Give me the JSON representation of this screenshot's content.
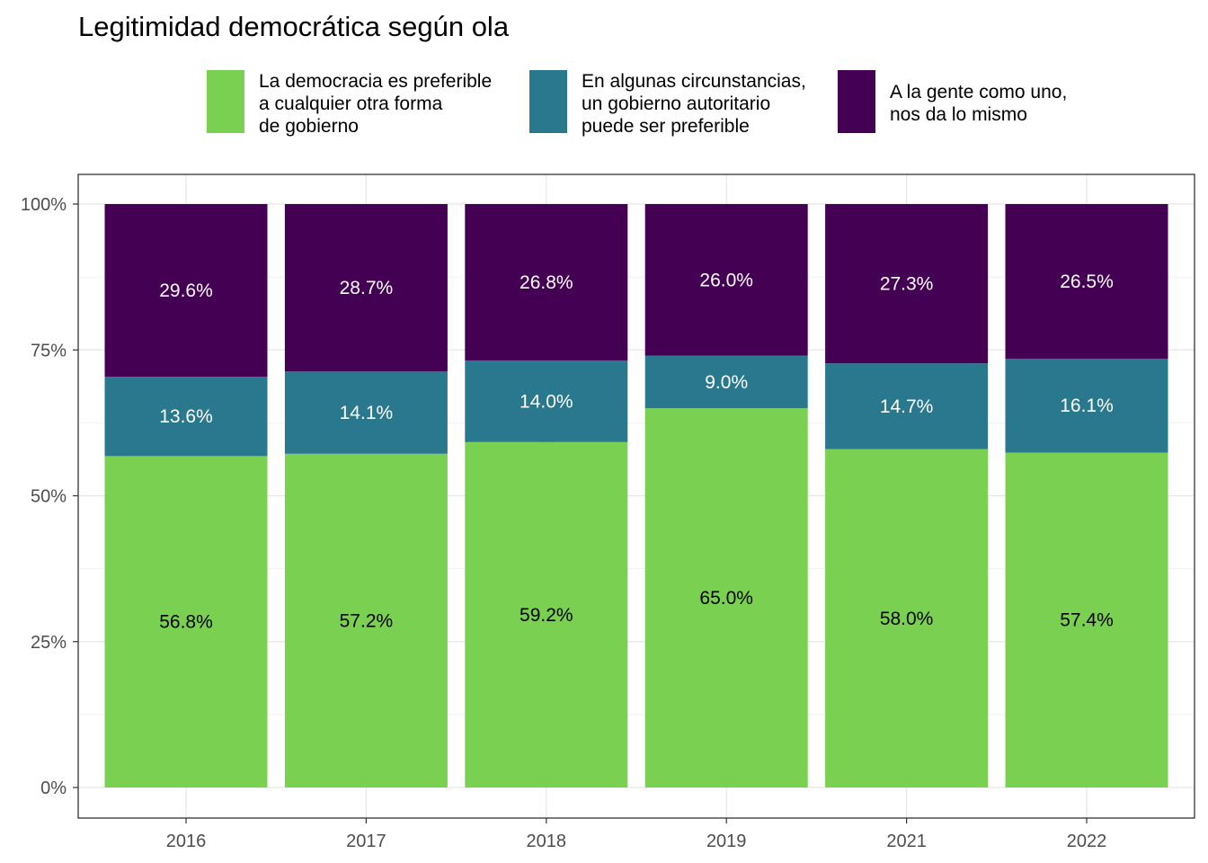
{
  "chart_data": {
    "type": "bar",
    "stacked": true,
    "title": "Legitimidad democrática según ola",
    "categories": [
      "2016",
      "2017",
      "2018",
      "2019",
      "2021",
      "2022"
    ],
    "series": [
      {
        "name": "La democracia es preferible a cualquier otra forma de gobierno",
        "name_lines": [
          "La democracia es preferible",
          "a cualquier otra forma",
          "de gobierno"
        ],
        "color": "#7AD151",
        "label_color": "#000000",
        "values": [
          56.8,
          57.2,
          59.2,
          65.0,
          58.0,
          57.4
        ],
        "labels": [
          "56.8%",
          "57.2%",
          "59.2%",
          "65.0%",
          "58.0%",
          "57.4%"
        ]
      },
      {
        "name": "En algunas circunstancias, un gobierno autoritario puede ser preferible",
        "name_lines": [
          "En algunas circunstancias,",
          "un gobierno autoritario",
          "puede ser preferible"
        ],
        "color": "#2A788E",
        "label_color": "#ffffff",
        "values": [
          13.6,
          14.1,
          14.0,
          9.0,
          14.7,
          16.1
        ],
        "labels": [
          "13.6%",
          "14.1%",
          "14.0%",
          "9.0%",
          "14.7%",
          "16.1%"
        ]
      },
      {
        "name": "A la gente como uno, nos da lo mismo",
        "name_lines": [
          "A la gente como uno,",
          "nos da lo mismo"
        ],
        "color": "#440154",
        "label_color": "#ffffff",
        "values": [
          29.6,
          28.7,
          26.8,
          26.0,
          27.3,
          26.5
        ],
        "labels": [
          "29.6%",
          "28.7%",
          "26.8%",
          "26.0%",
          "27.3%",
          "26.5%"
        ]
      }
    ],
    "y_ticks": [
      0,
      25,
      50,
      75,
      100
    ],
    "y_tick_labels": [
      "0%",
      "25%",
      "50%",
      "75%",
      "100%"
    ],
    "ylim": [
      0,
      100
    ],
    "xlabel": "",
    "ylabel": "",
    "grid": true,
    "legend_position": "top"
  }
}
